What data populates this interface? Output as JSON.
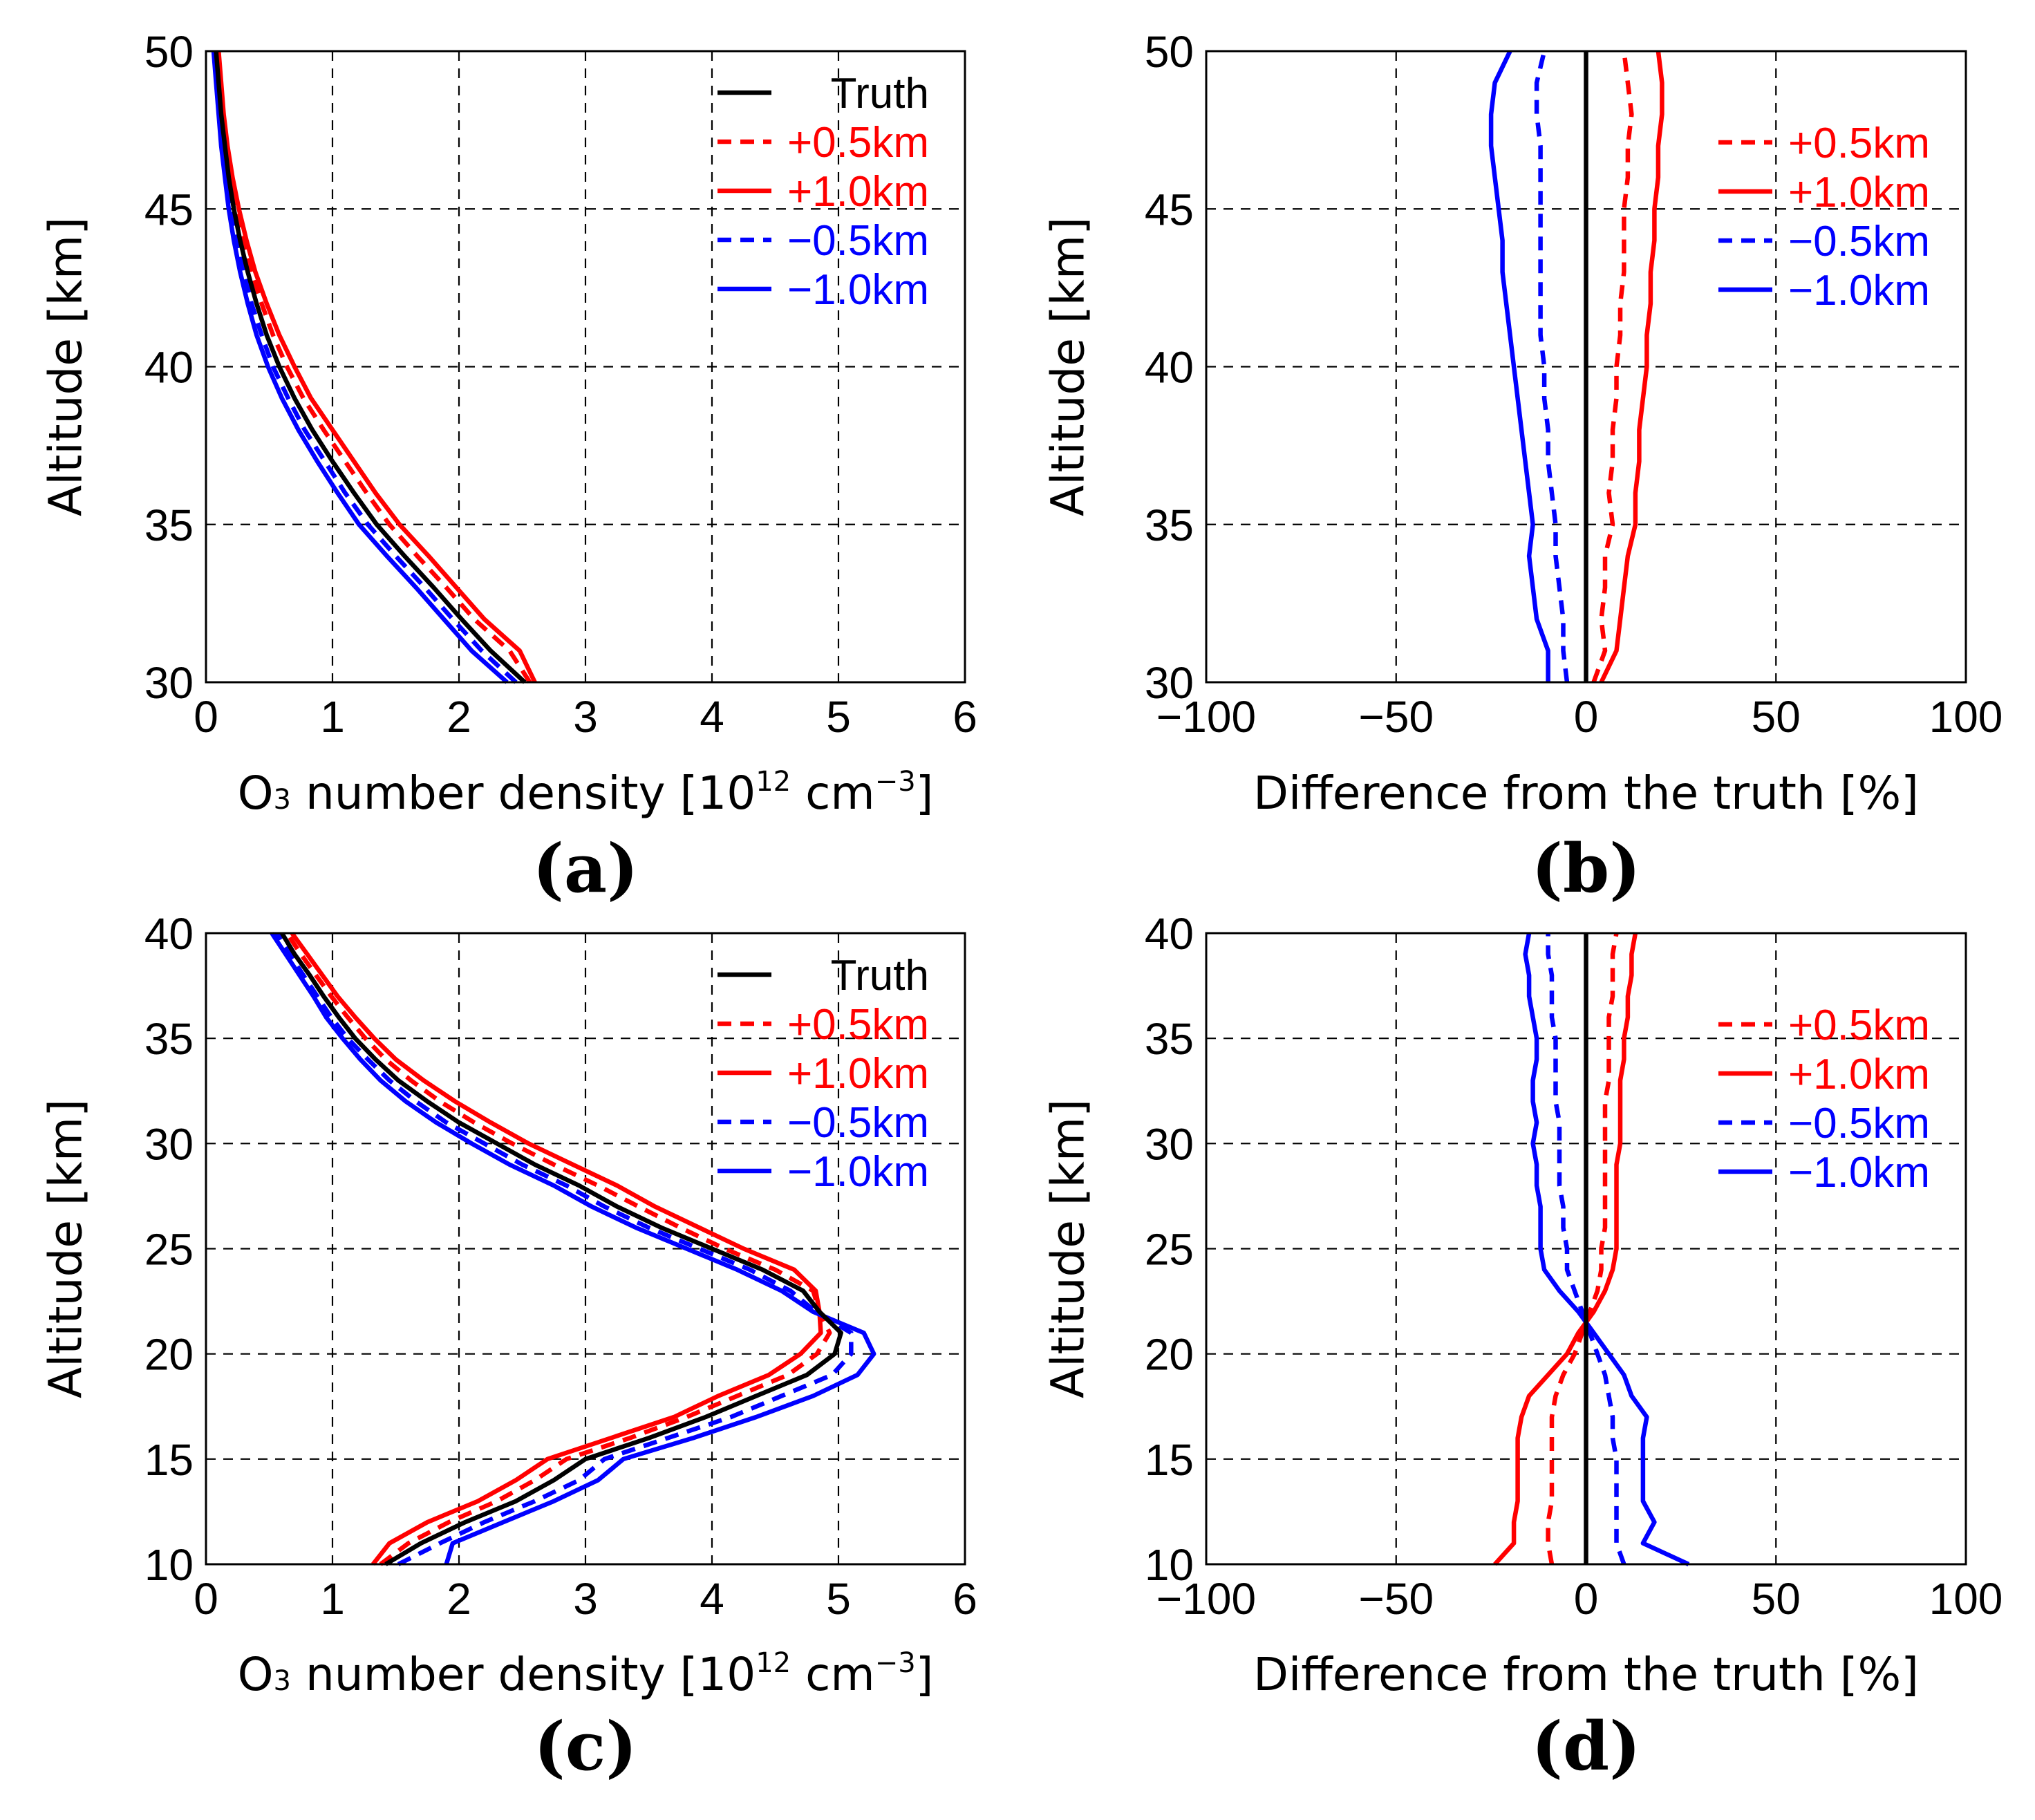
{
  "colors": {
    "truth": "#000000",
    "plus": "#ff0000",
    "minus": "#0000ff"
  },
  "chart_data": [
    {
      "panel": "(a)",
      "type": "line",
      "xlabel": "O3 number density [10^12 cm^-3]",
      "xlabel_parts": {
        "pre": "O",
        "sub": "3",
        "mid": " number density [10",
        "sup1": "12",
        "mid2": " cm",
        "sup2": "−3",
        "post": "]"
      },
      "ylabel": "Altitude [km]",
      "xlim": [
        0,
        6
      ],
      "ylim": [
        30,
        50
      ],
      "xticks": [
        "0",
        "1",
        "2",
        "3",
        "4",
        "5",
        "6"
      ],
      "xtick_values": [
        0,
        1,
        2,
        3,
        4,
        5,
        6
      ],
      "yticks": [
        "30",
        "35",
        "40",
        "45",
        "50"
      ],
      "ytick_values": [
        30,
        35,
        40,
        45,
        50
      ],
      "grid": true,
      "legend_position": "top-right",
      "y": [
        30,
        31,
        32,
        33,
        34,
        35,
        36,
        37,
        38,
        39,
        40,
        41,
        42,
        43,
        44,
        45,
        46,
        47,
        48,
        49,
        50
      ],
      "series": [
        {
          "name": "Truth",
          "style": "solid",
          "color": "truth",
          "x": [
            2.52,
            2.25,
            2.02,
            1.8,
            1.57,
            1.35,
            1.17,
            1.0,
            0.84,
            0.7,
            0.58,
            0.48,
            0.4,
            0.33,
            0.27,
            0.22,
            0.18,
            0.15,
            0.12,
            0.1,
            0.08
          ]
        },
        {
          "name": "+0.5km",
          "style": "dashed",
          "color": "plus",
          "x": [
            2.56,
            2.4,
            2.12,
            1.9,
            1.67,
            1.45,
            1.27,
            1.1,
            0.93,
            0.77,
            0.64,
            0.53,
            0.44,
            0.36,
            0.3,
            0.24,
            0.2,
            0.16,
            0.13,
            0.11,
            0.09
          ]
        },
        {
          "name": "+1.0km",
          "style": "solid",
          "color": "plus",
          "x": [
            2.6,
            2.48,
            2.2,
            1.98,
            1.76,
            1.53,
            1.34,
            1.17,
            1.0,
            0.83,
            0.7,
            0.58,
            0.48,
            0.39,
            0.32,
            0.26,
            0.21,
            0.17,
            0.14,
            0.12,
            0.1
          ]
        },
        {
          "name": "−0.5km",
          "style": "dashed",
          "color": "minus",
          "x": [
            2.45,
            2.18,
            1.95,
            1.73,
            1.5,
            1.28,
            1.1,
            0.94,
            0.78,
            0.65,
            0.53,
            0.44,
            0.36,
            0.3,
            0.25,
            0.2,
            0.16,
            0.13,
            0.11,
            0.09,
            0.07
          ]
        },
        {
          "name": "−1.0km",
          "style": "solid",
          "color": "minus",
          "x": [
            2.38,
            2.1,
            1.88,
            1.66,
            1.43,
            1.21,
            1.04,
            0.88,
            0.73,
            0.6,
            0.49,
            0.4,
            0.33,
            0.27,
            0.22,
            0.18,
            0.15,
            0.12,
            0.1,
            0.08,
            0.06
          ]
        }
      ]
    },
    {
      "panel": "(b)",
      "type": "line",
      "xlabel": "Difference from the truth [%]",
      "ylabel": "Altitude [km]",
      "xlim": [
        -100,
        100
      ],
      "ylim": [
        30,
        50
      ],
      "xticks": [
        "−100",
        "−50",
        "0",
        "50",
        "100"
      ],
      "xtick_values": [
        -100,
        -50,
        0,
        50,
        100
      ],
      "yticks": [
        "30",
        "35",
        "40",
        "45",
        "50"
      ],
      "ytick_values": [
        30,
        35,
        40,
        45,
        50
      ],
      "grid": true,
      "legend_position": "top-right",
      "y": [
        30,
        31,
        32,
        33,
        34,
        35,
        36,
        37,
        38,
        39,
        40,
        41,
        42,
        43,
        44,
        45,
        46,
        47,
        48,
        49,
        50
      ],
      "series": [
        {
          "name": "Truth",
          "style": "solid",
          "color": "truth",
          "show_in_legend": false,
          "x": [
            0,
            0,
            0,
            0,
            0,
            0,
            0,
            0,
            0,
            0,
            0,
            0,
            0,
            0,
            0,
            0,
            0,
            0,
            0,
            0,
            0
          ]
        },
        {
          "name": "+0.5km",
          "style": "dashed",
          "color": "plus",
          "x": [
            2,
            5,
            4,
            5,
            5,
            7,
            6,
            7,
            7,
            8,
            8,
            9,
            9,
            10,
            10,
            10,
            11,
            11,
            12,
            11,
            10
          ]
        },
        {
          "name": "+1.0km",
          "style": "solid",
          "color": "plus",
          "x": [
            4,
            8,
            9,
            10,
            11,
            13,
            13,
            14,
            14,
            15,
            16,
            16,
            17,
            17,
            18,
            18,
            19,
            19,
            20,
            20,
            19
          ]
        },
        {
          "name": "−0.5km",
          "style": "dashed",
          "color": "minus",
          "x": [
            -5,
            -6,
            -6,
            -7,
            -8,
            -8,
            -9,
            -10,
            -10,
            -11,
            -11,
            -12,
            -12,
            -12,
            -12,
            -12,
            -12,
            -12,
            -13,
            -13,
            -11
          ]
        },
        {
          "name": "−1.0km",
          "style": "solid",
          "color": "minus",
          "x": [
            -10,
            -10,
            -13,
            -14,
            -15,
            -14,
            -15,
            -16,
            -17,
            -18,
            -19,
            -20,
            -21,
            -22,
            -22,
            -23,
            -24,
            -25,
            -25,
            -24,
            -20
          ]
        }
      ]
    },
    {
      "panel": "(c)",
      "type": "line",
      "xlabel": "O3 number density [10^12 cm^-3]",
      "xlabel_parts": {
        "pre": "O",
        "sub": "3",
        "mid": " number density [10",
        "sup1": "12",
        "mid2": " cm",
        "sup2": "−3",
        "post": "]"
      },
      "ylabel": "Altitude [km]",
      "xlim": [
        0,
        6
      ],
      "ylim": [
        10,
        40
      ],
      "xticks": [
        "0",
        "1",
        "2",
        "3",
        "4",
        "5",
        "6"
      ],
      "xtick_values": [
        0,
        1,
        2,
        3,
        4,
        5,
        6
      ],
      "yticks": [
        "10",
        "15",
        "20",
        "25",
        "30",
        "35",
        "40"
      ],
      "ytick_values": [
        10,
        15,
        20,
        25,
        30,
        35,
        40
      ],
      "grid": true,
      "legend_position": "top-right",
      "y": [
        10,
        11,
        12,
        13,
        14,
        15,
        16,
        17,
        18,
        19,
        20,
        21,
        22,
        23,
        24,
        25,
        26,
        27,
        28,
        29,
        30,
        31,
        32,
        33,
        34,
        35,
        36,
        37,
        38,
        39,
        40
      ],
      "series": [
        {
          "name": "Truth",
          "style": "solid",
          "color": "truth",
          "x": [
            1.42,
            1.7,
            2.05,
            2.45,
            2.75,
            3.0,
            3.5,
            3.95,
            4.35,
            4.75,
            4.97,
            5.02,
            4.85,
            4.72,
            4.4,
            4.0,
            3.6,
            3.25,
            2.95,
            2.6,
            2.3,
            2.0,
            1.75,
            1.52,
            1.34,
            1.18,
            1.05,
            0.93,
            0.82,
            0.7,
            0.6
          ]
        },
        {
          "name": "+0.5km",
          "style": "dashed",
          "color": "plus",
          "x": [
            1.38,
            1.6,
            1.92,
            2.3,
            2.6,
            2.85,
            3.35,
            3.8,
            4.2,
            4.6,
            4.83,
            4.93,
            4.85,
            4.8,
            4.5,
            4.1,
            3.75,
            3.42,
            3.1,
            2.75,
            2.42,
            2.12,
            1.85,
            1.62,
            1.42,
            1.26,
            1.12,
            0.99,
            0.87,
            0.75,
            0.64
          ]
        },
        {
          "name": "+1.0km",
          "style": "solid",
          "color": "plus",
          "x": [
            1.32,
            1.45,
            1.75,
            2.15,
            2.45,
            2.7,
            3.2,
            3.7,
            4.05,
            4.45,
            4.7,
            4.86,
            4.85,
            4.82,
            4.65,
            4.25,
            3.9,
            3.55,
            3.25,
            2.9,
            2.55,
            2.25,
            1.97,
            1.72,
            1.5,
            1.33,
            1.18,
            1.04,
            0.92,
            0.8,
            0.68
          ]
        },
        {
          "name": "−0.5km",
          "style": "dashed",
          "color": "minus",
          "x": [
            1.52,
            1.85,
            2.2,
            2.6,
            2.95,
            3.15,
            3.65,
            4.15,
            4.55,
            4.95,
            5.1,
            5.1,
            4.82,
            4.62,
            4.3,
            3.9,
            3.5,
            3.15,
            2.85,
            2.5,
            2.2,
            1.9,
            1.66,
            1.45,
            1.28,
            1.12,
            0.99,
            0.88,
            0.77,
            0.66,
            0.56
          ]
        },
        {
          "name": "−1.0km",
          "style": "solid",
          "color": "minus",
          "x": [
            1.9,
            1.95,
            2.35,
            2.75,
            3.1,
            3.3,
            3.85,
            4.35,
            4.8,
            5.15,
            5.28,
            5.2,
            4.8,
            4.55,
            4.2,
            3.8,
            3.4,
            3.05,
            2.75,
            2.4,
            2.1,
            1.82,
            1.58,
            1.38,
            1.22,
            1.08,
            0.95,
            0.85,
            0.74,
            0.63,
            0.52
          ]
        }
      ]
    },
    {
      "panel": "(d)",
      "type": "line",
      "xlabel": "Difference from the truth [%]",
      "ylabel": "Altitude [km]",
      "xlim": [
        -100,
        100
      ],
      "ylim": [
        10,
        40
      ],
      "xticks": [
        "−100",
        "−50",
        "0",
        "50",
        "100"
      ],
      "xtick_values": [
        -100,
        -50,
        0,
        50,
        100
      ],
      "yticks": [
        "10",
        "15",
        "20",
        "25",
        "30",
        "35",
        "40"
      ],
      "ytick_values": [
        10,
        15,
        20,
        25,
        30,
        35,
        40
      ],
      "grid": true,
      "legend_position": "top-right",
      "y": [
        10,
        11,
        12,
        13,
        14,
        15,
        16,
        17,
        18,
        19,
        20,
        21,
        22,
        23,
        24,
        25,
        26,
        27,
        28,
        29,
        30,
        31,
        32,
        33,
        34,
        35,
        36,
        37,
        38,
        39,
        40
      ],
      "series": [
        {
          "name": "Truth",
          "style": "solid",
          "color": "truth",
          "show_in_legend": false,
          "x": [
            0,
            0,
            0,
            0,
            0,
            0,
            0,
            0,
            0,
            0,
            0,
            0,
            0,
            0,
            0,
            0,
            0,
            0,
            0,
            0,
            0,
            0,
            0,
            0,
            0,
            0,
            0,
            0,
            0,
            0,
            0
          ]
        },
        {
          "name": "+0.5km",
          "style": "dashed",
          "color": "plus",
          "x": [
            -9,
            -10,
            -10,
            -9,
            -9,
            -9,
            -9,
            -9,
            -8,
            -6,
            -3,
            -1,
            1,
            3,
            4,
            4,
            5,
            5,
            5,
            5,
            5,
            5,
            5,
            6,
            6,
            6,
            6,
            7,
            7,
            7,
            8
          ]
        },
        {
          "name": "+1.0km",
          "style": "solid",
          "color": "plus",
          "x": [
            -24,
            -19,
            -19,
            -18,
            -18,
            -18,
            -18,
            -17,
            -15,
            -10,
            -5,
            -2,
            2,
            5,
            7,
            8,
            8,
            8,
            8,
            8,
            9,
            9,
            9,
            9,
            10,
            10,
            11,
            11,
            12,
            12,
            13
          ]
        },
        {
          "name": "−0.5km",
          "style": "dashed",
          "color": "minus",
          "x": [
            10,
            8,
            8,
            8,
            8,
            8,
            7,
            7,
            6,
            5,
            3,
            1,
            -1,
            -3,
            -5,
            -5,
            -6,
            -6,
            -7,
            -7,
            -7,
            -7,
            -8,
            -8,
            -8,
            -8,
            -9,
            -9,
            -9,
            -10,
            -10
          ]
        },
        {
          "name": "−1.0km",
          "style": "solid",
          "color": "minus",
          "x": [
            27,
            15,
            18,
            15,
            15,
            15,
            15,
            16,
            12,
            10,
            6,
            2,
            -2,
            -7,
            -11,
            -12,
            -12,
            -12,
            -13,
            -13,
            -14,
            -13,
            -14,
            -14,
            -13,
            -13,
            -14,
            -15,
            -15,
            -16,
            -15
          ]
        }
      ]
    }
  ]
}
